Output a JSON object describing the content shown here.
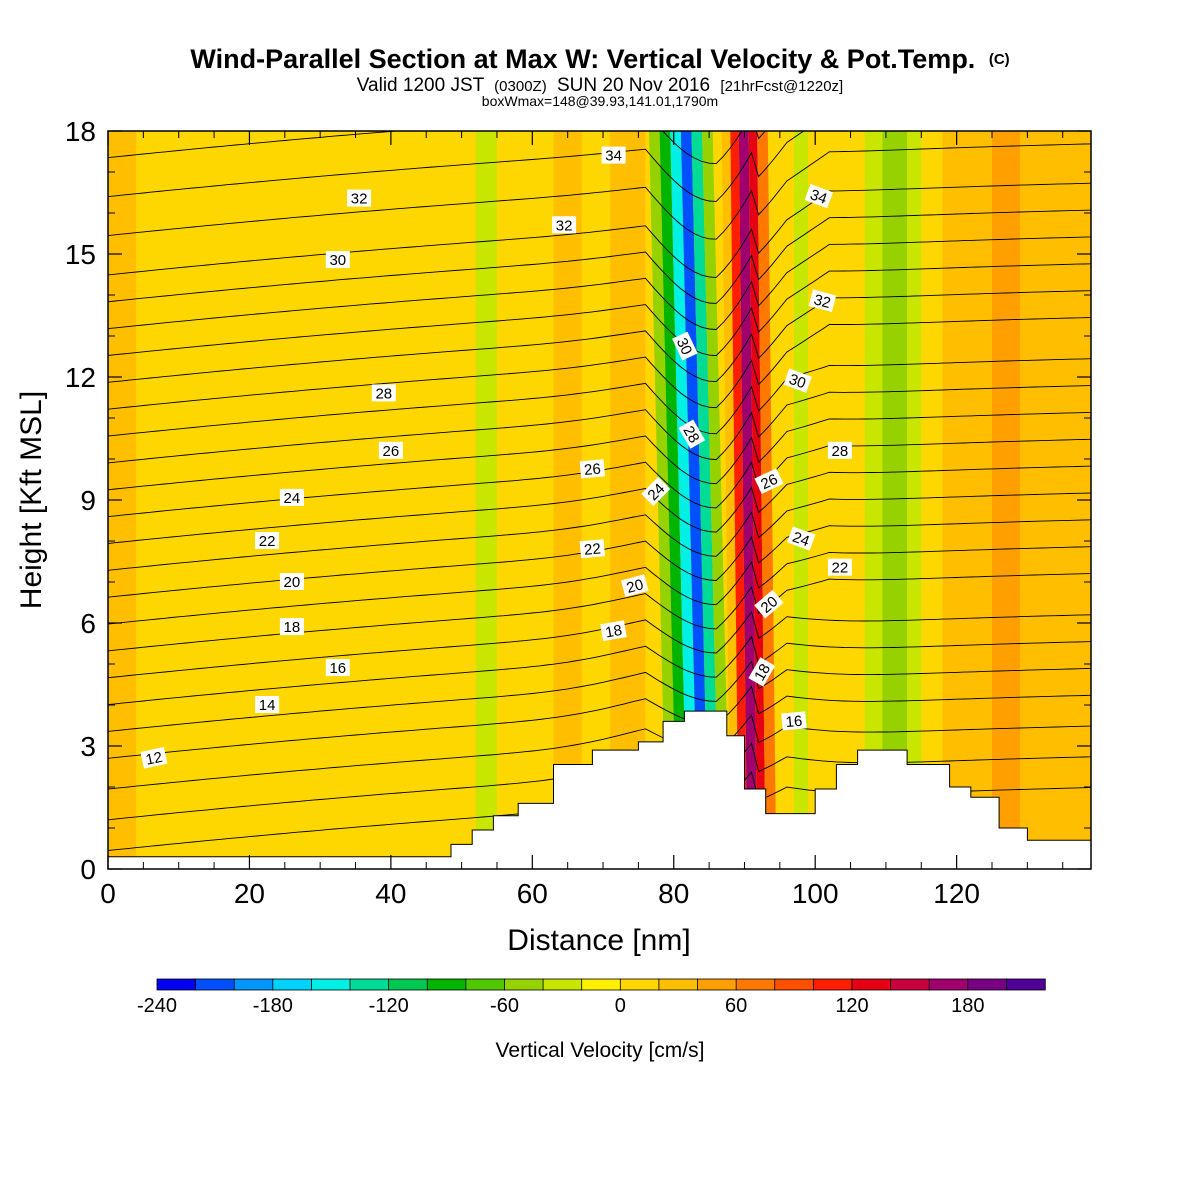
{
  "chart_data": {
    "type": "heatmap",
    "title": "Wind-Parallel Section at Max W: Vertical Velocity & Pot.Temp.",
    "title_mark": "(C)",
    "subtitle": {
      "valid_prefix": "Valid 1200 JST",
      "utc": "(0300Z)",
      "date": "SUN 20 Nov 2016",
      "forecast": "[21hrFcst@1220z]"
    },
    "box_info": "boxWmax=148@39.93,141.01,1790m",
    "xlabel": "Distance [nm]",
    "ylabel": "Height [Kft MSL]",
    "xlim": [
      0,
      139
    ],
    "ylim": [
      0,
      18
    ],
    "x_ticks": [
      "0",
      "20",
      "40",
      "60",
      "80",
      "100",
      "120"
    ],
    "y_ticks": [
      "0",
      "3",
      "6",
      "9",
      "12",
      "15",
      "18"
    ],
    "colorbar": {
      "label": "Vertical Velocity [cm/s]",
      "tick_labels": [
        "-240",
        "-180",
        "-120",
        "-60",
        "0",
        "60",
        "120",
        "180"
      ],
      "tick_values": [
        -240,
        -180,
        -120,
        -60,
        0,
        60,
        120,
        180
      ],
      "levels": [
        -240,
        -220,
        -200,
        -180,
        -160,
        -140,
        -120,
        -100,
        -80,
        -60,
        -40,
        -20,
        0,
        20,
        40,
        60,
        80,
        100,
        120,
        140,
        160,
        180,
        200
      ],
      "colors": [
        "#0000f0",
        "#0050ff",
        "#0096ff",
        "#00d2ff",
        "#00f0e6",
        "#00dc96",
        "#00c850",
        "#00b400",
        "#50c800",
        "#96d200",
        "#c8e600",
        "#fff000",
        "#ffd700",
        "#ffbe00",
        "#ffa000",
        "#ff7800",
        "#ff5000",
        "#ff1e00",
        "#e60014",
        "#c8003c",
        "#a0006e",
        "#780082",
        "#500096"
      ]
    },
    "velocity_bands": [
      {
        "x0": 0,
        "x1": 4,
        "w": 22
      },
      {
        "x0": 4,
        "x1": 26,
        "w": 6
      },
      {
        "x0": 26,
        "x1": 31,
        "w": 18
      },
      {
        "x0": 31,
        "x1": 46,
        "w": 5
      },
      {
        "x0": 46,
        "x1": 52,
        "w": 12
      },
      {
        "x0": 52,
        "x1": 55,
        "w": -28
      },
      {
        "x0": 55,
        "x1": 63,
        "w": 6
      },
      {
        "x0": 63,
        "x1": 67,
        "w": 24
      },
      {
        "x0": 67,
        "x1": 71,
        "w": 8
      },
      {
        "x0": 71,
        "x1": 76,
        "w": 34
      },
      {
        "x0": 76,
        "x1": 79,
        "w": 10
      },
      {
        "x0": 79,
        "x1": 80.5,
        "w": -60
      },
      {
        "x0": 80.5,
        "x1": 82,
        "w": -100
      },
      {
        "x0": 82,
        "x1": 83.5,
        "w": -150
      },
      {
        "x0": 83.5,
        "x1": 85,
        "w": -205
      },
      {
        "x0": 85,
        "x1": 86.5,
        "w": -130
      },
      {
        "x0": 86.5,
        "x1": 88,
        "w": -45
      },
      {
        "x0": 88,
        "x1": 89.2,
        "w": 30
      },
      {
        "x0": 89.2,
        "x1": 90.4,
        "w": 110
      },
      {
        "x0": 90.4,
        "x1": 91.8,
        "w": 160
      },
      {
        "x0": 91.8,
        "x1": 93,
        "w": 125
      },
      {
        "x0": 93,
        "x1": 94.5,
        "w": 70
      },
      {
        "x0": 94.5,
        "x1": 97,
        "w": 12
      },
      {
        "x0": 97,
        "x1": 99,
        "w": -38
      },
      {
        "x0": 99,
        "x1": 107,
        "w": 6
      },
      {
        "x0": 107,
        "x1": 109.5,
        "w": -30
      },
      {
        "x0": 109.5,
        "x1": 113,
        "w": -58
      },
      {
        "x0": 113,
        "x1": 115,
        "w": -25
      },
      {
        "x0": 115,
        "x1": 118,
        "w": 6
      },
      {
        "x0": 118,
        "x1": 125,
        "w": 26
      },
      {
        "x0": 125,
        "x1": 129,
        "w": 40
      },
      {
        "x0": 129,
        "x1": 139,
        "w": 24
      }
    ],
    "terrain": {
      "x": [
        0,
        48.5,
        48.5,
        51.5,
        51.5,
        54.5,
        54.5,
        58,
        58,
        63,
        63,
        68.5,
        68.5,
        75,
        75,
        78.5,
        78.5,
        81.5,
        81.5,
        87.5,
        87.5,
        90,
        90,
        93,
        93,
        100,
        100,
        103,
        103,
        106,
        106,
        109,
        109,
        113,
        113,
        119,
        119,
        122,
        122,
        126,
        126,
        130,
        130,
        139
      ],
      "y": [
        0.3,
        0.3,
        0.6,
        0.6,
        0.95,
        0.95,
        1.3,
        1.3,
        1.6,
        1.6,
        2.55,
        2.55,
        2.9,
        2.9,
        3.1,
        3.1,
        3.6,
        3.6,
        3.85,
        3.85,
        3.25,
        3.25,
        1.95,
        1.95,
        1.35,
        1.35,
        1.95,
        1.95,
        2.55,
        2.55,
        2.9,
        2.9,
        2.9,
        2.9,
        2.55,
        2.55,
        2.0,
        2.0,
        1.75,
        1.75,
        1.0,
        1.0,
        0.7,
        0.7
      ]
    },
    "theta_contours": {
      "levels": [
        9,
        10,
        11,
        12,
        13,
        14,
        15,
        16,
        17,
        18,
        19,
        20,
        21,
        22,
        23,
        24,
        25,
        26,
        27,
        28,
        29,
        30,
        31,
        32,
        33,
        34,
        35
      ],
      "labels": [
        {
          "text": "12",
          "x": 6.5,
          "y": 2.7,
          "rot": -12
        },
        {
          "text": "14",
          "x": 22.5,
          "y": 4.0,
          "rot": 0
        },
        {
          "text": "16",
          "x": 32.5,
          "y": 4.9,
          "rot": 0
        },
        {
          "text": "18",
          "x": 26,
          "y": 5.9,
          "rot": 0
        },
        {
          "text": "20",
          "x": 26,
          "y": 7.0,
          "rot": 0
        },
        {
          "text": "22",
          "x": 22.5,
          "y": 8.0,
          "rot": 0
        },
        {
          "text": "24",
          "x": 26,
          "y": 9.05,
          "rot": 0
        },
        {
          "text": "26",
          "x": 40,
          "y": 10.2,
          "rot": 0
        },
        {
          "text": "28",
          "x": 39,
          "y": 11.6,
          "rot": 0
        },
        {
          "text": "30",
          "x": 32.5,
          "y": 14.85,
          "rot": 0
        },
        {
          "text": "32",
          "x": 35.5,
          "y": 16.35,
          "rot": 0
        },
        {
          "text": "32",
          "x": 64.5,
          "y": 15.7,
          "rot": 0
        },
        {
          "text": "34",
          "x": 71.5,
          "y": 17.4,
          "rot": 0
        },
        {
          "text": "26",
          "x": 68.5,
          "y": 9.75,
          "rot": -5
        },
        {
          "text": "24",
          "x": 77.5,
          "y": 9.2,
          "rot": -45
        },
        {
          "text": "22",
          "x": 68.5,
          "y": 7.8,
          "rot": -5
        },
        {
          "text": "20",
          "x": 74.5,
          "y": 6.9,
          "rot": -15
        },
        {
          "text": "18",
          "x": 71.5,
          "y": 5.8,
          "rot": -10
        },
        {
          "text": "30",
          "x": 81.5,
          "y": 12.75,
          "rot": 65
        },
        {
          "text": "28",
          "x": 82.5,
          "y": 10.6,
          "rot": 60
        },
        {
          "text": "26",
          "x": 93.5,
          "y": 9.45,
          "rot": -25
        },
        {
          "text": "24",
          "x": 98,
          "y": 8.05,
          "rot": 20
        },
        {
          "text": "22",
          "x": 103.5,
          "y": 7.35,
          "rot": 0
        },
        {
          "text": "20",
          "x": 93.5,
          "y": 6.45,
          "rot": -40
        },
        {
          "text": "18",
          "x": 92.5,
          "y": 4.8,
          "rot": -60
        },
        {
          "text": "16",
          "x": 97,
          "y": 3.6,
          "rot": -5
        },
        {
          "text": "28",
          "x": 103.5,
          "y": 10.2,
          "rot": 0
        },
        {
          "text": "30",
          "x": 97.5,
          "y": 11.9,
          "rot": 20
        },
        {
          "text": "32",
          "x": 101,
          "y": 13.85,
          "rot": 15
        },
        {
          "text": "34",
          "x": 100.5,
          "y": 16.4,
          "rot": 20
        }
      ]
    }
  }
}
